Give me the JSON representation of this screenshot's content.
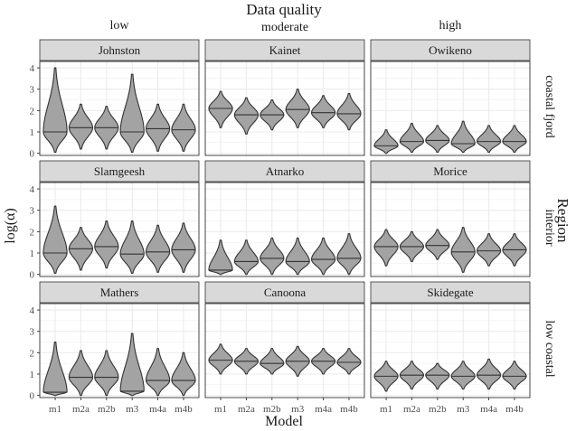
{
  "chart_data": {
    "type": "violin",
    "title": "Data quality",
    "column_labels": [
      "low",
      "moderate",
      "high"
    ],
    "row_strip_title": "Region",
    "row_labels": [
      "coastal fjord",
      "interior",
      "low coastal"
    ],
    "xlabel": "Model",
    "ylabel": "log(α)",
    "categories": [
      "m1",
      "m2a",
      "m2b",
      "m3",
      "m4a",
      "m4b"
    ],
    "yticks": [
      0,
      1,
      2,
      3,
      4
    ],
    "ylim": [
      -0.1,
      4.3
    ],
    "grid": true,
    "panels": [
      {
        "name": "Johnston",
        "violins": [
          {
            "model": "m1",
            "median": 1.0,
            "min": 0.05,
            "max": 4.0
          },
          {
            "model": "m2a",
            "median": 1.2,
            "min": 0.2,
            "max": 2.3
          },
          {
            "model": "m2b",
            "median": 1.2,
            "min": 0.2,
            "max": 2.2
          },
          {
            "model": "m3",
            "median": 1.0,
            "min": 0.05,
            "max": 3.7
          },
          {
            "model": "m4a",
            "median": 1.15,
            "min": 0.1,
            "max": 2.3
          },
          {
            "model": "m4b",
            "median": 1.1,
            "min": 0.1,
            "max": 2.3
          }
        ]
      },
      {
        "name": "Kainet",
        "violins": [
          {
            "model": "m1",
            "median": 2.1,
            "min": 1.2,
            "max": 2.9
          },
          {
            "model": "m2a",
            "median": 1.8,
            "min": 0.9,
            "max": 2.6
          },
          {
            "model": "m2b",
            "median": 1.8,
            "min": 1.1,
            "max": 2.5
          },
          {
            "model": "m3",
            "median": 2.05,
            "min": 1.2,
            "max": 3.0
          },
          {
            "model": "m4a",
            "median": 1.9,
            "min": 1.2,
            "max": 2.7
          },
          {
            "model": "m4b",
            "median": 1.85,
            "min": 1.1,
            "max": 2.8
          }
        ]
      },
      {
        "name": "Owikeno",
        "violins": [
          {
            "model": "m1",
            "median": 0.35,
            "min": 0.0,
            "max": 1.1
          },
          {
            "model": "m2a",
            "median": 0.55,
            "min": 0.05,
            "max": 1.4
          },
          {
            "model": "m2b",
            "median": 0.6,
            "min": 0.05,
            "max": 1.3
          },
          {
            "model": "m3",
            "median": 0.45,
            "min": 0.05,
            "max": 1.5
          },
          {
            "model": "m4a",
            "median": 0.55,
            "min": 0.05,
            "max": 1.3
          },
          {
            "model": "m4b",
            "median": 0.55,
            "min": 0.05,
            "max": 1.3
          }
        ]
      },
      {
        "name": "Slamgeesh",
        "violins": [
          {
            "model": "m1",
            "median": 1.0,
            "min": 0.05,
            "max": 3.2
          },
          {
            "model": "m2a",
            "median": 1.2,
            "min": 0.2,
            "max": 2.2
          },
          {
            "model": "m2b",
            "median": 1.3,
            "min": 0.3,
            "max": 2.5
          },
          {
            "model": "m3",
            "median": 0.95,
            "min": 0.05,
            "max": 2.5
          },
          {
            "model": "m4a",
            "median": 1.05,
            "min": 0.1,
            "max": 2.3
          },
          {
            "model": "m4b",
            "median": 1.15,
            "min": 0.1,
            "max": 2.4
          }
        ]
      },
      {
        "name": "Atnarko",
        "violins": [
          {
            "model": "m1",
            "median": 0.2,
            "min": 0.0,
            "max": 1.6
          },
          {
            "model": "m2a",
            "median": 0.6,
            "min": 0.0,
            "max": 1.6
          },
          {
            "model": "m2b",
            "median": 0.75,
            "min": 0.0,
            "max": 1.7
          },
          {
            "model": "m3",
            "median": 0.6,
            "min": 0.0,
            "max": 1.7
          },
          {
            "model": "m4a",
            "median": 0.7,
            "min": 0.0,
            "max": 1.7
          },
          {
            "model": "m4b",
            "median": 0.75,
            "min": 0.0,
            "max": 1.9
          }
        ]
      },
      {
        "name": "Morice",
        "violins": [
          {
            "model": "m1",
            "median": 1.3,
            "min": 0.4,
            "max": 2.1
          },
          {
            "model": "m2a",
            "median": 1.3,
            "min": 0.6,
            "max": 2.0
          },
          {
            "model": "m2b",
            "median": 1.35,
            "min": 0.7,
            "max": 2.1
          },
          {
            "model": "m3",
            "median": 1.05,
            "min": 0.1,
            "max": 2.2
          },
          {
            "model": "m4a",
            "median": 1.1,
            "min": 0.4,
            "max": 1.9
          },
          {
            "model": "m4b",
            "median": 1.15,
            "min": 0.4,
            "max": 1.9
          }
        ]
      },
      {
        "name": "Mathers",
        "violins": [
          {
            "model": "m1",
            "median": 0.15,
            "min": 0.0,
            "max": 2.5
          },
          {
            "model": "m2a",
            "median": 0.85,
            "min": 0.0,
            "max": 2.1
          },
          {
            "model": "m2b",
            "median": 0.85,
            "min": 0.0,
            "max": 2.1
          },
          {
            "model": "m3",
            "median": 0.2,
            "min": 0.0,
            "max": 2.9
          },
          {
            "model": "m4a",
            "median": 0.7,
            "min": 0.0,
            "max": 2.2
          },
          {
            "model": "m4b",
            "median": 0.7,
            "min": 0.0,
            "max": 2.0
          }
        ]
      },
      {
        "name": "Canoona",
        "violins": [
          {
            "model": "m1",
            "median": 1.65,
            "min": 1.0,
            "max": 2.4
          },
          {
            "model": "m2a",
            "median": 1.6,
            "min": 1.0,
            "max": 2.2
          },
          {
            "model": "m2b",
            "median": 1.5,
            "min": 1.0,
            "max": 2.2
          },
          {
            "model": "m3",
            "median": 1.6,
            "min": 0.9,
            "max": 2.3
          },
          {
            "model": "m4a",
            "median": 1.6,
            "min": 1.0,
            "max": 2.2
          },
          {
            "model": "m4b",
            "median": 1.55,
            "min": 1.0,
            "max": 2.2
          }
        ]
      },
      {
        "name": "Skidegate",
        "violins": [
          {
            "model": "m1",
            "median": 0.9,
            "min": 0.2,
            "max": 1.6
          },
          {
            "model": "m2a",
            "median": 0.95,
            "min": 0.3,
            "max": 1.6
          },
          {
            "model": "m2b",
            "median": 0.95,
            "min": 0.3,
            "max": 1.5
          },
          {
            "model": "m3",
            "median": 0.9,
            "min": 0.3,
            "max": 1.6
          },
          {
            "model": "m4a",
            "median": 0.95,
            "min": 0.3,
            "max": 1.7
          },
          {
            "model": "m4b",
            "median": 0.9,
            "min": 0.3,
            "max": 1.6
          }
        ]
      }
    ],
    "colors": {
      "violin_fill": "#a3a3a3",
      "violin_stroke": "#333333",
      "panel_background": "#ffffff",
      "panel_border": "#333333",
      "grid": "#ebebeb",
      "strip_fill": "#d9d9d9",
      "text": "#1a1a1a",
      "tick_text": "#4d4d4d"
    }
  }
}
